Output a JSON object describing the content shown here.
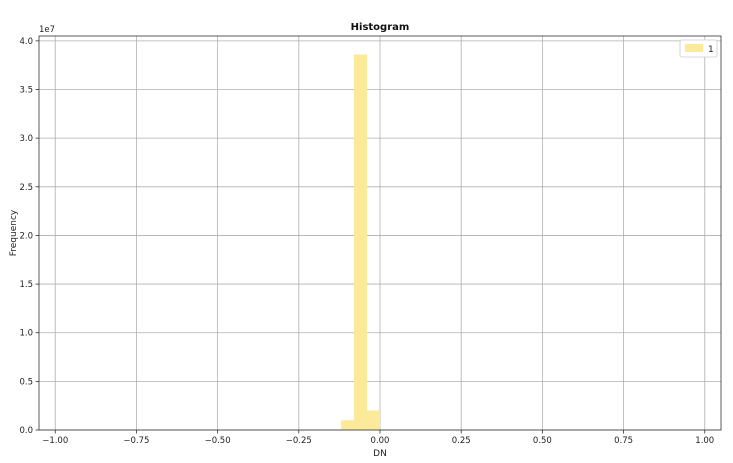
{
  "chart_data": {
    "type": "bar",
    "title": "Histogram",
    "xlabel": "DN",
    "ylabel": "Frequency",
    "y_multiplier_label": "1e7",
    "xlim": [
      -1.05,
      1.05
    ],
    "ylim": [
      0,
      40500000
    ],
    "grid": true,
    "x_ticks": [
      {
        "value": -1.0,
        "label": "−1.00"
      },
      {
        "value": -0.75,
        "label": "−0.75"
      },
      {
        "value": -0.5,
        "label": "−0.50"
      },
      {
        "value": -0.25,
        "label": "−0.25"
      },
      {
        "value": 0.0,
        "label": "0.00"
      },
      {
        "value": 0.25,
        "label": "0.25"
      },
      {
        "value": 0.5,
        "label": "0.50"
      },
      {
        "value": 0.75,
        "label": "0.75"
      },
      {
        "value": 1.0,
        "label": "1.00"
      }
    ],
    "y_ticks": [
      {
        "value": 0,
        "label": "0.0"
      },
      {
        "value": 5000000,
        "label": "0.5"
      },
      {
        "value": 10000000,
        "label": "1.0"
      },
      {
        "value": 15000000,
        "label": "1.5"
      },
      {
        "value": 20000000,
        "label": "2.0"
      },
      {
        "value": 25000000,
        "label": "2.5"
      },
      {
        "value": 30000000,
        "label": "3.0"
      },
      {
        "value": 35000000,
        "label": "3.5"
      },
      {
        "value": 40000000,
        "label": "4.0"
      }
    ],
    "bin_width": 0.04,
    "series": [
      {
        "name": "1",
        "color": "#fde99a",
        "bins": [
          {
            "start": -0.12,
            "value": 1000000
          },
          {
            "start": -0.08,
            "value": 38600000
          },
          {
            "start": -0.04,
            "value": 2000000
          }
        ]
      }
    ],
    "legend_position": "top-right"
  }
}
